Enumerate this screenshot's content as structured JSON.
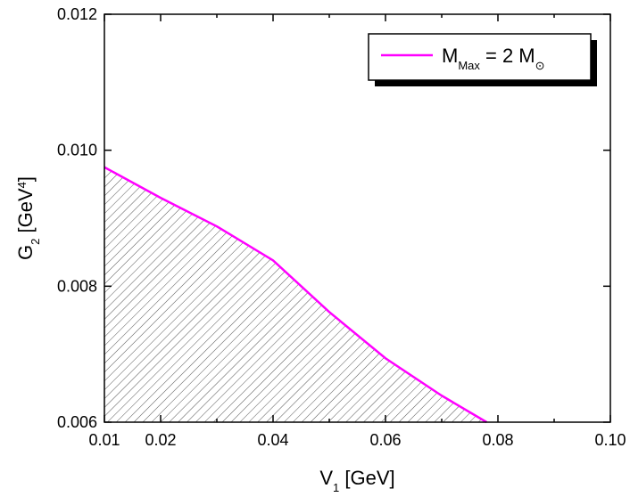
{
  "chart_data": {
    "type": "line",
    "xlabel": [
      "V",
      "1",
      " [GeV]"
    ],
    "ylabel": [
      "G",
      "2",
      " [GeV",
      "4",
      "]"
    ],
    "x": [
      0.01,
      0.02,
      0.03,
      0.04,
      0.05,
      0.06,
      0.07,
      0.078
    ],
    "series": [
      {
        "name": [
          "M",
          "Max",
          " = 2 M",
          "⊙"
        ],
        "color": "#ff00ff",
        "values": [
          0.00975,
          0.0093,
          0.00888,
          0.00838,
          0.00762,
          0.00694,
          0.00639,
          0.006
        ]
      }
    ],
    "fill_below": true,
    "xlim": [
      0.01,
      0.1
    ],
    "ylim": [
      0.006,
      0.012
    ],
    "xticks": [
      0.01,
      0.02,
      0.04,
      0.06,
      0.08,
      {
        "value": 0.1,
        "label": "0.10"
      }
    ],
    "yticks": [
      0.006,
      0.008,
      {
        "value": 0.01,
        "label": "0.010"
      },
      0.012
    ],
    "legend": "upper right"
  }
}
